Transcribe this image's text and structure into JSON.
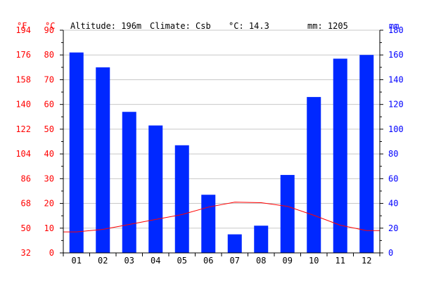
{
  "header": {
    "altitude": "Altitude: 196m",
    "climate": "Climate: Csb",
    "mean_temp": "°C: 14.3",
    "precip": "mm: 1205"
  },
  "units": {
    "fahrenheit": "°F",
    "celsius": "°C",
    "millimetres": "mm"
  },
  "colors": {
    "precip_bar": "#0028ff",
    "temp_line": "#ff0000",
    "temp_axis": "#ff0000",
    "precip_axis": "#0000ff",
    "grid": "#c8c8c8",
    "text": "#000000"
  },
  "chart_data": {
    "type": "bar",
    "categories": [
      "01",
      "02",
      "03",
      "04",
      "05",
      "06",
      "07",
      "08",
      "09",
      "10",
      "11",
      "12"
    ],
    "series": [
      {
        "kind": "bar",
        "axis": "precip_mm",
        "values": [
          162,
          150,
          114,
          103,
          87,
          47,
          15,
          22,
          63,
          126,
          157,
          160
        ]
      },
      {
        "kind": "line",
        "axis": "temp_c",
        "values": [
          8.5,
          9.5,
          11.5,
          13.5,
          15.5,
          18.5,
          20.5,
          20.3,
          18.8,
          15.2,
          11.2,
          9.0
        ]
      }
    ],
    "axes": {
      "temp_c": {
        "range": [
          0,
          90
        ],
        "ticks": [
          0,
          10,
          20,
          30,
          40,
          50,
          60,
          70,
          80,
          90
        ]
      },
      "temp_f": {
        "range": [
          32,
          194
        ],
        "ticks": [
          32,
          50,
          68,
          86,
          104,
          122,
          140,
          158,
          176,
          194
        ]
      },
      "precip_mm": {
        "range": [
          0,
          180
        ],
        "ticks": [
          0,
          20,
          40,
          60,
          80,
          100,
          120,
          140,
          160,
          180
        ]
      }
    },
    "grid": true
  }
}
